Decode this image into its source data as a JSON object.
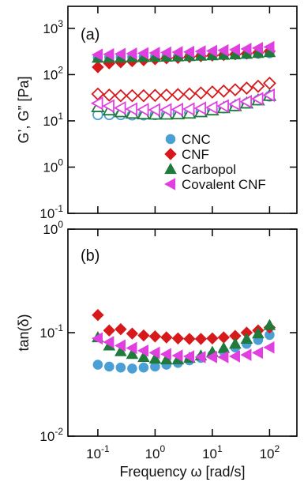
{
  "chart_data": [
    {
      "type": "scatter",
      "panel_label": "(a)",
      "ylabel": "G’, G” [Pa]",
      "x_scale": "log",
      "y_scale": "log",
      "xlim": [
        0.03,
        300
      ],
      "ylim": [
        0.1,
        3000
      ],
      "y_ticks": [
        {
          "value": 0.1,
          "base": "10",
          "exp": "-1"
        },
        {
          "value": 1,
          "base": "10",
          "exp": "0"
        },
        {
          "value": 10,
          "base": "10",
          "exp": "1"
        },
        {
          "value": 100,
          "base": "10",
          "exp": "2"
        },
        {
          "value": 1000,
          "base": "10",
          "exp": "3"
        }
      ],
      "legend": {
        "placement": "bottom-right",
        "entries": [
          {
            "label": "CNC",
            "color": "#4a9fd5",
            "marker": "circle"
          },
          {
            "label": "CNF",
            "color": "#d7191c",
            "marker": "diamond"
          },
          {
            "label": "Carbopol",
            "color": "#1f7a3c",
            "marker": "triangle"
          },
          {
            "label": "Covalent CNF",
            "color": "#e040e0",
            "marker": "triangle-left"
          }
        ]
      },
      "series": [
        {
          "sample": "CNC",
          "modulus": "G'",
          "filled": true,
          "color": "#4a9fd5",
          "marker": "circle",
          "x": [
            0.1,
            0.158,
            0.251,
            0.398,
            0.631,
            1,
            1.58,
            2.51,
            3.98,
            6.31,
            10,
            15.8,
            25.1,
            39.8,
            63.1,
            100
          ],
          "y": [
            235,
            238,
            240,
            242,
            245,
            248,
            250,
            252,
            255,
            258,
            262,
            266,
            270,
            275,
            282,
            290
          ]
        },
        {
          "sample": "CNF",
          "modulus": "G'",
          "filled": true,
          "color": "#d7191c",
          "marker": "diamond",
          "x": [
            0.1,
            0.158,
            0.251,
            0.398,
            0.631,
            1,
            1.58,
            2.51,
            3.98,
            6.31,
            10,
            15.8,
            25.1,
            39.8,
            63.1,
            100
          ],
          "y": [
            145,
            175,
            185,
            195,
            205,
            215,
            225,
            230,
            240,
            250,
            258,
            265,
            275,
            285,
            300,
            320
          ]
        },
        {
          "sample": "Carbopol",
          "modulus": "G'",
          "filled": true,
          "color": "#1f7a3c",
          "marker": "triangle",
          "x": [
            0.1,
            0.158,
            0.251,
            0.398,
            0.631,
            1,
            1.58,
            2.51,
            3.98,
            6.31,
            10,
            15.8,
            25.1,
            39.8,
            63.1,
            100
          ],
          "y": [
            230,
            232,
            234,
            236,
            238,
            240,
            243,
            246,
            250,
            255,
            260,
            266,
            272,
            280,
            292,
            305
          ]
        },
        {
          "sample": "Covalent CNF",
          "modulus": "G'",
          "filled": true,
          "color": "#e040e0",
          "marker": "triangle-left",
          "x": [
            0.1,
            0.158,
            0.251,
            0.398,
            0.631,
            1,
            1.58,
            2.51,
            3.98,
            6.31,
            10,
            15.8,
            25.1,
            39.8,
            63.1,
            100
          ],
          "y": [
            270,
            275,
            280,
            285,
            290,
            295,
            300,
            305,
            310,
            318,
            325,
            335,
            345,
            360,
            375,
            395
          ]
        },
        {
          "sample": "CNC",
          "modulus": "G\"",
          "filled": false,
          "color": "#4a9fd5",
          "marker": "circle",
          "x": [
            0.1,
            0.158,
            0.251,
            0.398,
            0.631,
            1,
            1.58,
            2.51,
            3.98,
            6.31,
            10,
            15.8,
            25.1,
            39.8,
            63.1,
            100
          ],
          "y": [
            13.5,
            13.5,
            13.5,
            13.3,
            13.3,
            13.5,
            14,
            14.5,
            15,
            16,
            17.5,
            19,
            21,
            24,
            28,
            34
          ]
        },
        {
          "sample": "CNF",
          "modulus": "G\"",
          "filled": false,
          "color": "#d7191c",
          "marker": "diamond",
          "x": [
            0.1,
            0.158,
            0.251,
            0.398,
            0.631,
            1,
            1.58,
            2.51,
            3.98,
            6.31,
            10,
            15.8,
            25.1,
            39.8,
            63.1,
            100
          ],
          "y": [
            38,
            36,
            35,
            35,
            35,
            35.5,
            36,
            37,
            38,
            40,
            42,
            44,
            47,
            51,
            56,
            65
          ]
        },
        {
          "sample": "Carbopol",
          "modulus": "G\"",
          "filled": false,
          "color": "#1f7a3c",
          "marker": "triangle",
          "x": [
            0.1,
            0.158,
            0.251,
            0.398,
            0.631,
            1,
            1.58,
            2.51,
            3.98,
            6.31,
            10,
            15.8,
            25.1,
            39.8,
            63.1,
            100
          ],
          "y": [
            20,
            17,
            15.5,
            14.5,
            14,
            13.8,
            13.8,
            14,
            14.5,
            15.5,
            17,
            19,
            21,
            24,
            28,
            35
          ]
        },
        {
          "sample": "Covalent CNF",
          "modulus": "G\"",
          "filled": false,
          "color": "#e040e0",
          "marker": "triangle-left",
          "x": [
            0.1,
            0.158,
            0.251,
            0.398,
            0.631,
            1,
            1.58,
            2.51,
            3.98,
            6.31,
            10,
            15.8,
            25.1,
            39.8,
            63.1,
            100
          ],
          "y": [
            24,
            21,
            19,
            18,
            17.5,
            17.3,
            17.3,
            17.6,
            18,
            18.7,
            19.5,
            21,
            23,
            26,
            30,
            36
          ]
        }
      ]
    },
    {
      "type": "scatter",
      "panel_label": "(b)",
      "ylabel": "tan(δ)",
      "xlabel": "Frequency ω [rad/s]",
      "x_scale": "log",
      "y_scale": "log",
      "xlim": [
        0.03,
        300
      ],
      "ylim": [
        0.01,
        1
      ],
      "x_ticks": [
        {
          "value": 0.1,
          "base": "10",
          "exp": "-1"
        },
        {
          "value": 1,
          "base": "10",
          "exp": "0"
        },
        {
          "value": 10,
          "base": "10",
          "exp": "1"
        },
        {
          "value": 100,
          "base": "10",
          "exp": "2"
        }
      ],
      "y_ticks": [
        {
          "value": 0.01,
          "base": "10",
          "exp": "-2"
        },
        {
          "value": 0.1,
          "base": "10",
          "exp": "-1"
        },
        {
          "value": 1,
          "base": "10",
          "exp": "0"
        }
      ],
      "series": [
        {
          "sample": "CNC",
          "filled": true,
          "color": "#4a9fd5",
          "marker": "circle",
          "x": [
            0.1,
            0.158,
            0.251,
            0.398,
            0.631,
            1,
            1.58,
            2.51,
            3.98,
            6.31,
            10,
            15.8,
            25.1,
            39.8,
            63.1,
            100
          ],
          "y": [
            0.049,
            0.047,
            0.046,
            0.045,
            0.046,
            0.047,
            0.049,
            0.051,
            0.054,
            0.057,
            0.061,
            0.066,
            0.072,
            0.078,
            0.085,
            0.095
          ]
        },
        {
          "sample": "CNF",
          "filled": true,
          "color": "#d7191c",
          "marker": "diamond",
          "x": [
            0.1,
            0.158,
            0.251,
            0.398,
            0.631,
            1,
            1.58,
            2.51,
            3.98,
            6.31,
            10,
            15.8,
            25.1,
            39.8,
            63.1,
            100
          ],
          "y": [
            0.148,
            0.105,
            0.108,
            0.098,
            0.094,
            0.092,
            0.09,
            0.088,
            0.087,
            0.087,
            0.088,
            0.09,
            0.093,
            0.1,
            0.105,
            0.112
          ]
        },
        {
          "sample": "Carbopol",
          "filled": true,
          "color": "#1f7a3c",
          "marker": "triangle",
          "x": [
            0.1,
            0.158,
            0.251,
            0.398,
            0.631,
            1,
            1.58,
            2.51,
            3.98,
            6.31,
            10,
            15.8,
            25.1,
            39.8,
            63.1,
            100
          ],
          "y": [
            0.09,
            0.075,
            0.066,
            0.062,
            0.058,
            0.056,
            0.055,
            0.055,
            0.057,
            0.06,
            0.065,
            0.071,
            0.078,
            0.087,
            0.098,
            0.118
          ]
        },
        {
          "sample": "Covalent CNF",
          "filled": true,
          "color": "#e040e0",
          "marker": "triangle-left",
          "x": [
            0.1,
            0.158,
            0.251,
            0.398,
            0.631,
            1,
            1.58,
            2.51,
            3.98,
            6.31,
            10,
            15.8,
            25.1,
            39.8,
            63.1,
            100
          ],
          "y": [
            0.088,
            0.081,
            0.075,
            0.071,
            0.067,
            0.064,
            0.062,
            0.06,
            0.059,
            0.058,
            0.058,
            0.058,
            0.059,
            0.061,
            0.064,
            0.072
          ]
        }
      ]
    }
  ]
}
